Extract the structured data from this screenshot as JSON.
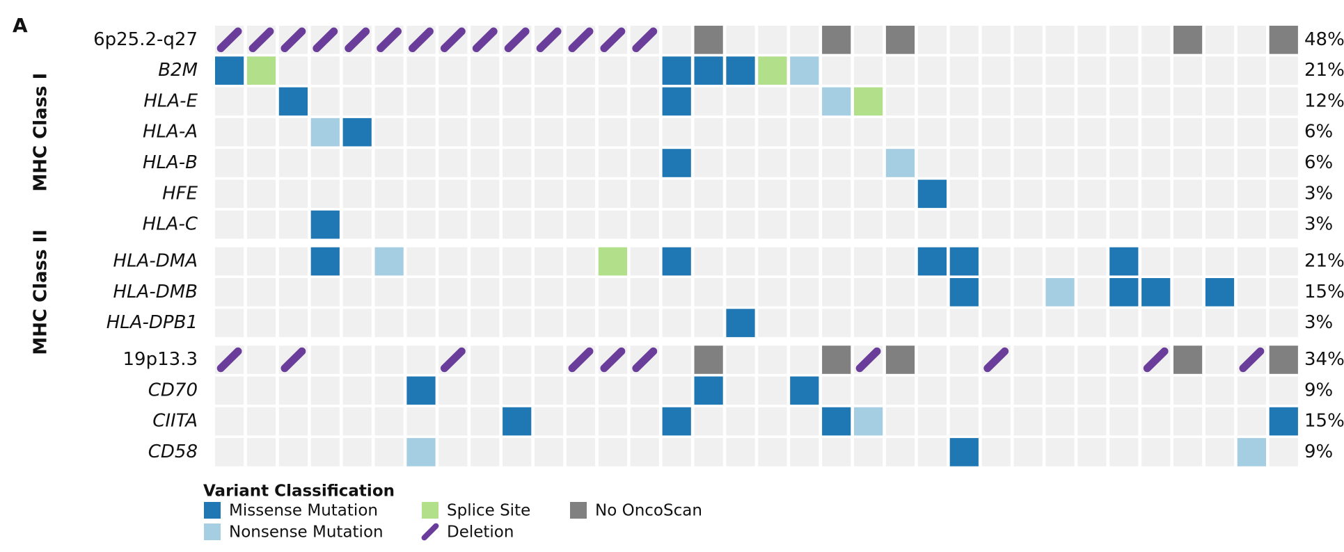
{
  "chart_data": {
    "type": "oncoprint",
    "panel": "A",
    "groups": [
      {
        "label": "MHC Class I",
        "rows": [
          {
            "name": "6p25.2-q27",
            "italic": false,
            "label": "48%",
            "cells": [
              3,
              3,
              3,
              3,
              3,
              3,
              3,
              3,
              3,
              3,
              3,
              3,
              3,
              3,
              null,
              4,
              null,
              null,
              null,
              4,
              null,
              4,
              null,
              null,
              null,
              null,
              null,
              null,
              null,
              null,
              4,
              null,
              null,
              4
            ]
          },
          {
            "name": "B2M",
            "italic": true,
            "label": "21%",
            "cells": [
              0,
              2,
              null,
              null,
              null,
              null,
              null,
              null,
              null,
              null,
              null,
              null,
              null,
              null,
              0,
              0,
              0,
              2,
              1,
              null,
              null,
              null,
              null,
              null,
              null,
              null,
              null,
              null,
              null,
              null,
              null,
              null,
              null,
              null
            ]
          },
          {
            "name": "HLA-E",
            "italic": true,
            "label": "12%",
            "cells": [
              null,
              null,
              0,
              null,
              null,
              null,
              null,
              null,
              null,
              null,
              null,
              null,
              null,
              null,
              0,
              null,
              null,
              null,
              null,
              1,
              2,
              null,
              null,
              null,
              null,
              null,
              null,
              null,
              null,
              null,
              null,
              null,
              null,
              null
            ]
          },
          {
            "name": "HLA-A",
            "italic": true,
            "label": "6%",
            "cells": [
              null,
              null,
              null,
              1,
              0,
              null,
              null,
              null,
              null,
              null,
              null,
              null,
              null,
              null,
              null,
              null,
              null,
              null,
              null,
              null,
              null,
              null,
              null,
              null,
              null,
              null,
              null,
              null,
              null,
              null,
              null,
              null,
              null,
              null
            ]
          },
          {
            "name": "HLA-B",
            "italic": true,
            "label": "6%",
            "cells": [
              null,
              null,
              null,
              null,
              null,
              null,
              null,
              null,
              null,
              null,
              null,
              null,
              null,
              null,
              0,
              null,
              null,
              null,
              null,
              null,
              null,
              1,
              null,
              null,
              null,
              null,
              null,
              null,
              null,
              null,
              null,
              null,
              null,
              null
            ]
          },
          {
            "name": "HFE",
            "italic": true,
            "label": "3%",
            "cells": [
              null,
              null,
              null,
              null,
              null,
              null,
              null,
              null,
              null,
              null,
              null,
              null,
              null,
              null,
              null,
              null,
              null,
              null,
              null,
              null,
              null,
              null,
              0,
              null,
              null,
              null,
              null,
              null,
              null,
              null,
              null,
              null,
              null,
              null
            ]
          },
          {
            "name": "HLA-C",
            "italic": true,
            "label": "3%",
            "cells": [
              null,
              null,
              null,
              0,
              null,
              null,
              null,
              null,
              null,
              null,
              null,
              null,
              null,
              null,
              null,
              null,
              null,
              null,
              null,
              null,
              null,
              null,
              null,
              null,
              null,
              null,
              null,
              null,
              null,
              null,
              null,
              null,
              null,
              null
            ]
          }
        ]
      },
      {
        "label": "MHC Class II",
        "rows": [
          {
            "name": "HLA-DMA",
            "italic": true,
            "label": "21%",
            "cells": [
              null,
              null,
              null,
              0,
              null,
              1,
              null,
              null,
              null,
              null,
              null,
              null,
              2,
              null,
              0,
              null,
              null,
              null,
              null,
              null,
              null,
              null,
              0,
              0,
              null,
              null,
              null,
              null,
              0,
              null,
              null,
              null,
              null,
              null
            ]
          },
          {
            "name": "HLA-DMB",
            "italic": true,
            "label": "15%",
            "cells": [
              null,
              null,
              null,
              null,
              null,
              null,
              null,
              null,
              null,
              null,
              null,
              null,
              null,
              null,
              null,
              null,
              null,
              null,
              null,
              null,
              null,
              null,
              null,
              0,
              null,
              null,
              1,
              null,
              0,
              0,
              null,
              0,
              null,
              null
            ]
          },
          {
            "name": "HLA-DPB1",
            "italic": true,
            "label": "3%",
            "cells": [
              null,
              null,
              null,
              null,
              null,
              null,
              null,
              null,
              null,
              null,
              null,
              null,
              null,
              null,
              null,
              null,
              0,
              null,
              null,
              null,
              null,
              null,
              null,
              null,
              null,
              null,
              null,
              null,
              null,
              null,
              null,
              null,
              null,
              null
            ]
          }
        ]
      },
      {
        "rows": [
          {
            "name": "19p13.3",
            "italic": false,
            "label": "34%",
            "cells": [
              3,
              null,
              3,
              null,
              null,
              null,
              null,
              3,
              null,
              null,
              null,
              3,
              3,
              3,
              null,
              4,
              null,
              null,
              null,
              4,
              3,
              4,
              null,
              null,
              3,
              null,
              null,
              null,
              null,
              3,
              4,
              null,
              3,
              4
            ]
          },
          {
            "name": "CD70",
            "italic": true,
            "label": "9%",
            "cells": [
              null,
              null,
              null,
              null,
              null,
              null,
              0,
              null,
              null,
              null,
              null,
              null,
              null,
              null,
              null,
              0,
              null,
              null,
              0,
              null,
              null,
              null,
              null,
              null,
              null,
              null,
              null,
              null,
              null,
              null,
              null,
              null,
              null,
              null
            ]
          },
          {
            "name": "CIITA",
            "italic": true,
            "label": "15%",
            "cells": [
              null,
              null,
              null,
              null,
              null,
              null,
              null,
              null,
              null,
              0,
              null,
              null,
              null,
              null,
              0,
              null,
              null,
              null,
              null,
              0,
              1,
              null,
              null,
              null,
              null,
              null,
              null,
              null,
              null,
              null,
              null,
              null,
              null,
              0
            ]
          },
          {
            "name": "CD58",
            "italic": true,
            "label": "9%",
            "cells": [
              null,
              null,
              null,
              null,
              null,
              null,
              1,
              null,
              null,
              null,
              null,
              null,
              null,
              null,
              null,
              null,
              null,
              null,
              null,
              null,
              null,
              null,
              null,
              0,
              null,
              null,
              null,
              null,
              null,
              null,
              null,
              null,
              1,
              null
            ]
          }
        ]
      }
    ],
    "legend": {
      "title": "Variant Classification",
      "items": [
        {
          "name": "Missense Mutation",
          "color": "#1f78b4"
        },
        {
          "name": "Nonsense Mutation",
          "color": "#a6cee3"
        },
        {
          "name": "Splice Site",
          "color": "#b2df8a"
        },
        {
          "name": "Deletion",
          "color": "#6a3d9a"
        },
        {
          "name": "No OncoScan",
          "color": "#808080"
        }
      ]
    },
    "empty_color": "#f0f0f0"
  }
}
